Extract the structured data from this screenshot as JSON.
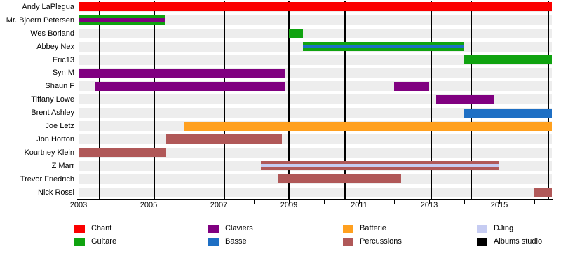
{
  "chart_data": {
    "type": "timeline",
    "title": "",
    "x_axis": {
      "min": 2003,
      "max": 2016.5,
      "major_ticks": [
        2003,
        2005,
        2007,
        2009,
        2011,
        2013,
        2015
      ],
      "major_tick_labels": [
        "2003",
        "2005",
        "2007",
        "2009",
        "2011",
        "2013",
        "2015"
      ],
      "minor_ticks": [
        2004,
        2006,
        2008,
        2010,
        2012,
        2014,
        2016
      ],
      "grid": false
    },
    "role_colors": {
      "Chant": "#fb0000",
      "Guitare": "#10a310",
      "Claviers": "#800080",
      "Basse": "#1e6fc4",
      "Batterie": "#ffa01f",
      "Percussions": "#b05858",
      "DJing": "#c6ccf2",
      "Albums studio": "#000000"
    },
    "members": [
      {
        "name": "Andy LaPlegua",
        "bars": [
          {
            "start": 2003.0,
            "end": 2016.5,
            "roles": [
              "Chant"
            ]
          }
        ]
      },
      {
        "name": "Mr. Bjoern Petersen",
        "bars": [
          {
            "start": 2003.0,
            "end": 2005.45,
            "roles": [
              "Guitare",
              "Claviers"
            ]
          }
        ]
      },
      {
        "name": "Wes Borland",
        "bars": [
          {
            "start": 2009.0,
            "end": 2009.4,
            "roles": [
              "Guitare"
            ]
          }
        ]
      },
      {
        "name": "Abbey Nex",
        "bars": [
          {
            "start": 2009.4,
            "end": 2014.0,
            "roles": [
              "Guitare",
              "Basse"
            ]
          }
        ]
      },
      {
        "name": "Eric13",
        "bars": [
          {
            "start": 2014.0,
            "end": 2016.5,
            "roles": [
              "Guitare"
            ]
          }
        ]
      },
      {
        "name": "Syn M",
        "bars": [
          {
            "start": 2003.0,
            "end": 2008.9,
            "roles": [
              "Claviers"
            ]
          }
        ]
      },
      {
        "name": "Shaun F",
        "bars": [
          {
            "start": 2003.45,
            "end": 2008.9,
            "roles": [
              "Claviers"
            ]
          },
          {
            "start": 2012.0,
            "end": 2013.0,
            "roles": [
              "Claviers"
            ]
          }
        ]
      },
      {
        "name": "Tiffany Lowe",
        "bars": [
          {
            "start": 2013.2,
            "end": 2014.85,
            "roles": [
              "Claviers"
            ]
          }
        ]
      },
      {
        "name": "Brent Ashley",
        "bars": [
          {
            "start": 2014.0,
            "end": 2016.5,
            "roles": [
              "Basse"
            ]
          }
        ]
      },
      {
        "name": "Joe Letz",
        "bars": [
          {
            "start": 2006.0,
            "end": 2016.5,
            "roles": [
              "Batterie"
            ]
          }
        ]
      },
      {
        "name": "Jon Horton",
        "bars": [
          {
            "start": 2005.5,
            "end": 2008.8,
            "roles": [
              "Percussions"
            ]
          }
        ]
      },
      {
        "name": "Kourtney Klein",
        "bars": [
          {
            "start": 2003.0,
            "end": 2005.5,
            "roles": [
              "Percussions"
            ]
          }
        ]
      },
      {
        "name": "Z Marr",
        "bars": [
          {
            "start": 2008.2,
            "end": 2015.0,
            "roles": [
              "Percussions",
              "DJing"
            ]
          }
        ]
      },
      {
        "name": "Trevor Friedrich",
        "bars": [
          {
            "start": 2008.7,
            "end": 2012.2,
            "roles": [
              "Percussions"
            ]
          }
        ]
      },
      {
        "name": "Nick Rossi",
        "bars": [
          {
            "start": 2016.0,
            "end": 2016.5,
            "roles": [
              "Percussions"
            ]
          }
        ]
      }
    ],
    "albums": {
      "label": "Albums studio",
      "years": [
        2003.6,
        2005.15,
        2007.15,
        2009.0,
        2010.6,
        2013.05,
        2014.2,
        2016.4
      ]
    },
    "legend": {
      "columns": [
        {
          "items": [
            {
              "label": "Chant",
              "color": "#fb0000"
            },
            {
              "label": "Guitare",
              "color": "#10a310"
            }
          ]
        },
        {
          "items": [
            {
              "label": "Claviers",
              "color": "#800080"
            },
            {
              "label": "Basse",
              "color": "#1e6fc4"
            }
          ]
        },
        {
          "items": [
            {
              "label": "Batterie",
              "color": "#ffa01f"
            },
            {
              "label": "Percussions",
              "color": "#b05858"
            }
          ]
        },
        {
          "items": [
            {
              "label": "DJing",
              "color": "#c6ccf2"
            },
            {
              "label": "Albums studio",
              "color": "#000000"
            }
          ]
        }
      ]
    }
  }
}
